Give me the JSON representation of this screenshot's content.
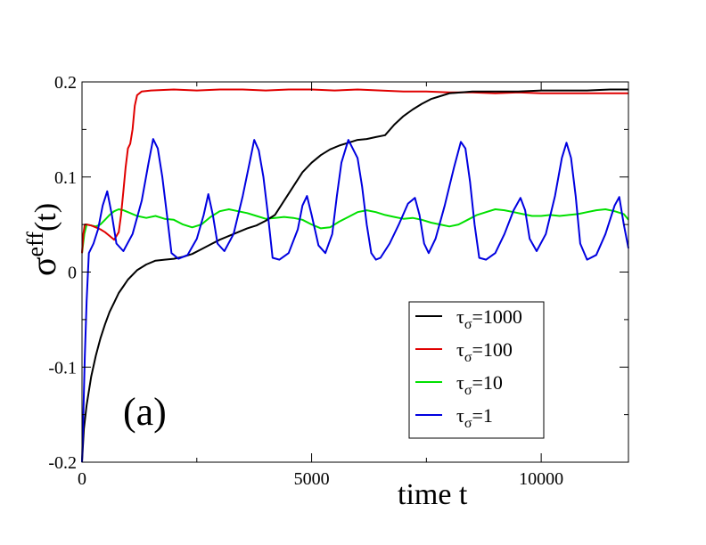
{
  "chart_data": {
    "type": "line",
    "panel_label": "(a)",
    "xlabel": "time t",
    "ylabel_base": "σ",
    "ylabel_sup": "eff",
    "ylabel_rest": "(t)",
    "xlim": [
      0,
      11900
    ],
    "ylim": [
      -0.2,
      0.2
    ],
    "x_ticks": [
      0,
      5000,
      10000
    ],
    "x_tick_labels": [
      "0",
      "5000",
      "10000"
    ],
    "y_ticks": [
      -0.2,
      -0.1,
      0,
      0.1,
      0.2
    ],
    "y_tick_labels": [
      "-0.2",
      "-0.1",
      "0",
      "0.1",
      "0.2"
    ],
    "legend_position": "bottom-right",
    "series": [
      {
        "name": "τσ=1000",
        "legend_base": "τ",
        "legend_sub": "σ",
        "legend_value": "=1000",
        "color": "#000000",
        "x": [
          0,
          40,
          100,
          200,
          300,
          400,
          500,
          600,
          700,
          800,
          900,
          1000,
          1200,
          1400,
          1600,
          1800,
          2000,
          2200,
          2400,
          2600,
          2800,
          3000,
          3200,
          3400,
          3600,
          3800,
          4000,
          4200,
          4400,
          4600,
          4800,
          5000,
          5200,
          5400,
          5600,
          5800,
          6000,
          6200,
          6400,
          6600,
          6800,
          7000,
          7200,
          7400,
          7600,
          7800,
          8000,
          8500,
          9000,
          9500,
          10000,
          10500,
          11000,
          11500,
          11900
        ],
        "values": [
          -0.2,
          -0.165,
          -0.14,
          -0.11,
          -0.088,
          -0.07,
          -0.055,
          -0.042,
          -0.032,
          -0.022,
          -0.015,
          -0.008,
          0.002,
          0.008,
          0.012,
          0.013,
          0.014,
          0.016,
          0.019,
          0.024,
          0.029,
          0.034,
          0.038,
          0.042,
          0.046,
          0.049,
          0.054,
          0.06,
          0.075,
          0.09,
          0.105,
          0.115,
          0.123,
          0.129,
          0.133,
          0.136,
          0.139,
          0.14,
          0.142,
          0.144,
          0.155,
          0.164,
          0.171,
          0.177,
          0.182,
          0.185,
          0.188,
          0.19,
          0.19,
          0.19,
          0.191,
          0.191,
          0.191,
          0.192,
          0.192
        ]
      },
      {
        "name": "τσ=100",
        "legend_base": "τ",
        "legend_sub": "σ",
        "legend_value": "=100",
        "color": "#e00000",
        "x": [
          0,
          30,
          60,
          100,
          200,
          300,
          400,
          500,
          600,
          700,
          800,
          850,
          900,
          950,
          1000,
          1050,
          1100,
          1150,
          1200,
          1300,
          1500,
          2000,
          2500,
          3000,
          3500,
          4000,
          4500,
          5000,
          5500,
          6000,
          6500,
          7000,
          7500,
          8000,
          8500,
          9000,
          9500,
          10000,
          10500,
          11000,
          11500,
          11900
        ],
        "values": [
          0.02,
          0.04,
          0.05,
          0.05,
          0.049,
          0.047,
          0.045,
          0.042,
          0.038,
          0.034,
          0.042,
          0.06,
          0.085,
          0.11,
          0.13,
          0.135,
          0.15,
          0.175,
          0.186,
          0.19,
          0.191,
          0.192,
          0.191,
          0.192,
          0.192,
          0.191,
          0.192,
          0.192,
          0.191,
          0.192,
          0.191,
          0.19,
          0.19,
          0.189,
          0.189,
          0.188,
          0.189,
          0.188,
          0.188,
          0.188,
          0.188,
          0.188
        ]
      },
      {
        "name": "τσ=10",
        "legend_base": "τ",
        "legend_sub": "σ",
        "legend_value": "=10",
        "color": "#00e000",
        "x": [
          0,
          50,
          100,
          200,
          300,
          400,
          500,
          600,
          700,
          800,
          900,
          1000,
          1200,
          1400,
          1600,
          1800,
          2000,
          2200,
          2400,
          2600,
          2800,
          3000,
          3200,
          3400,
          3600,
          3800,
          4000,
          4200,
          4400,
          4600,
          4800,
          5000,
          5200,
          5400,
          5600,
          5800,
          6000,
          6200,
          6400,
          6600,
          6800,
          7000,
          7200,
          7400,
          7600,
          7800,
          8000,
          8200,
          8400,
          8600,
          8800,
          9000,
          9200,
          9400,
          9600,
          9800,
          10000,
          10200,
          10400,
          10600,
          10800,
          11000,
          11200,
          11400,
          11600,
          11800,
          11900
        ],
        "values": [
          0.02,
          0.04,
          0.05,
          0.049,
          0.048,
          0.05,
          0.055,
          0.06,
          0.064,
          0.066,
          0.065,
          0.063,
          0.059,
          0.057,
          0.059,
          0.056,
          0.055,
          0.05,
          0.047,
          0.05,
          0.058,
          0.064,
          0.066,
          0.064,
          0.062,
          0.059,
          0.056,
          0.057,
          0.058,
          0.057,
          0.055,
          0.05,
          0.046,
          0.047,
          0.053,
          0.058,
          0.063,
          0.065,
          0.063,
          0.06,
          0.058,
          0.056,
          0.057,
          0.055,
          0.052,
          0.05,
          0.048,
          0.05,
          0.055,
          0.06,
          0.063,
          0.066,
          0.065,
          0.063,
          0.061,
          0.059,
          0.059,
          0.06,
          0.059,
          0.06,
          0.061,
          0.063,
          0.065,
          0.066,
          0.064,
          0.061,
          0.055
        ]
      },
      {
        "name": "τσ=1",
        "legend_base": "τ",
        "legend_sub": "σ",
        "legend_value": "=1",
        "color": "#0000e0",
        "x": [
          0,
          30,
          60,
          100,
          150,
          250,
          350,
          450,
          550,
          650,
          750,
          900,
          1100,
          1300,
          1450,
          1550,
          1650,
          1750,
          1850,
          1950,
          2100,
          2300,
          2500,
          2650,
          2750,
          2850,
          2950,
          3100,
          3300,
          3500,
          3650,
          3750,
          3850,
          3950,
          4050,
          4150,
          4300,
          4500,
          4700,
          4800,
          4900,
          5000,
          5150,
          5300,
          5450,
          5550,
          5650,
          5800,
          6000,
          6100,
          6200,
          6300,
          6400,
          6500,
          6700,
          6900,
          7100,
          7250,
          7350,
          7450,
          7550,
          7700,
          7900,
          8100,
          8250,
          8350,
          8450,
          8550,
          8650,
          8800,
          9000,
          9200,
          9400,
          9550,
          9650,
          9750,
          9900,
          10100,
          10300,
          10450,
          10550,
          10650,
          10750,
          10850,
          11000,
          11200,
          11400,
          11600,
          11700,
          11800,
          11900
        ],
        "values": [
          -0.2,
          -0.15,
          -0.09,
          -0.03,
          0.02,
          0.03,
          0.045,
          0.07,
          0.085,
          0.06,
          0.03,
          0.022,
          0.04,
          0.075,
          0.115,
          0.14,
          0.13,
          0.1,
          0.06,
          0.02,
          0.014,
          0.018,
          0.035,
          0.06,
          0.082,
          0.06,
          0.03,
          0.022,
          0.04,
          0.08,
          0.115,
          0.139,
          0.128,
          0.1,
          0.06,
          0.015,
          0.013,
          0.02,
          0.045,
          0.07,
          0.08,
          0.06,
          0.028,
          0.02,
          0.04,
          0.08,
          0.115,
          0.139,
          0.12,
          0.09,
          0.05,
          0.02,
          0.013,
          0.015,
          0.03,
          0.05,
          0.072,
          0.078,
          0.06,
          0.03,
          0.02,
          0.035,
          0.07,
          0.11,
          0.137,
          0.13,
          0.095,
          0.05,
          0.015,
          0.013,
          0.02,
          0.04,
          0.065,
          0.078,
          0.065,
          0.035,
          0.022,
          0.04,
          0.08,
          0.12,
          0.136,
          0.12,
          0.08,
          0.03,
          0.013,
          0.018,
          0.04,
          0.07,
          0.079,
          0.05,
          0.025
        ]
      }
    ]
  }
}
